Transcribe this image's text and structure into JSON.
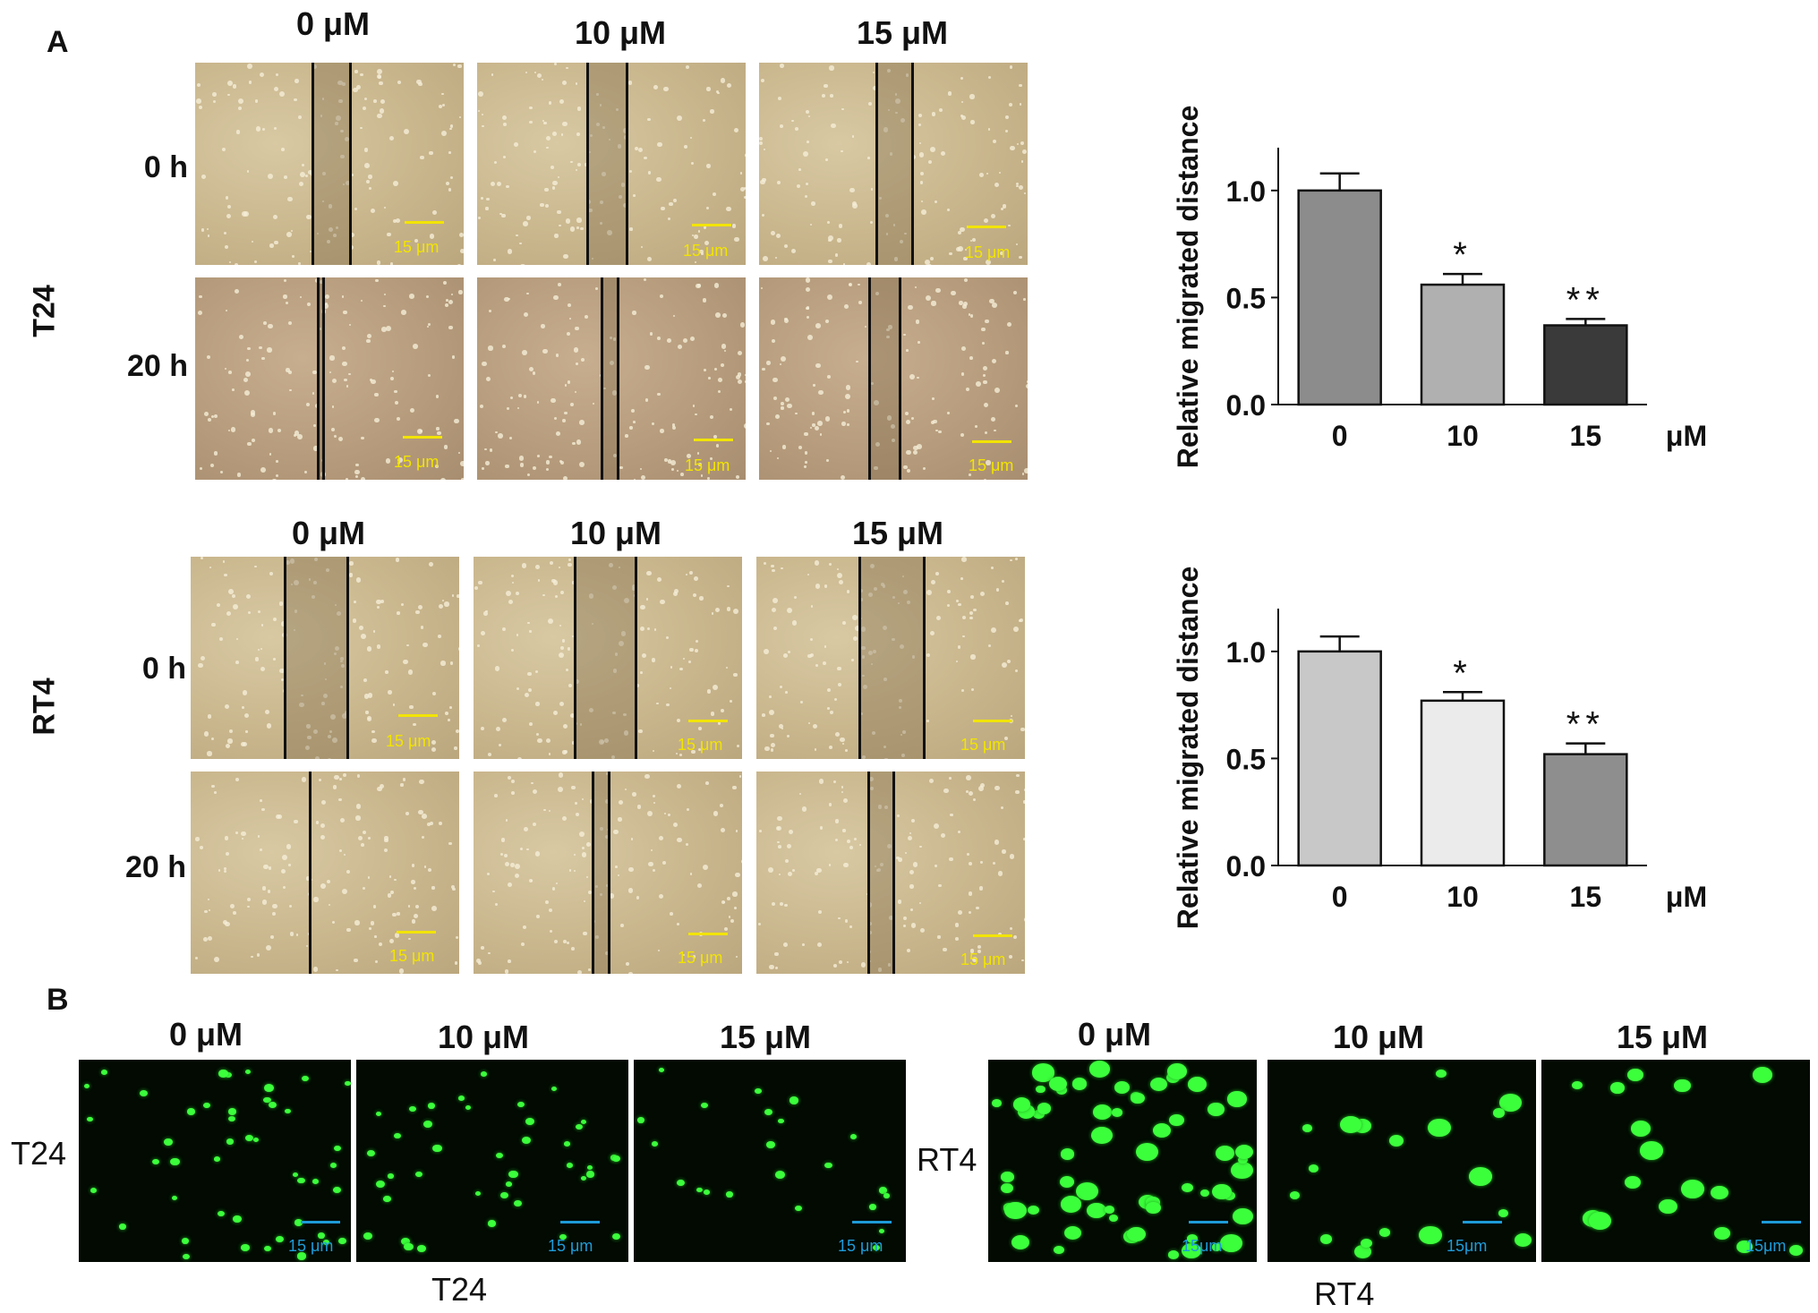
{
  "panel_a": {
    "letter": "A",
    "conc_headers": [
      "0 μM",
      "10 μM",
      "15 μM"
    ],
    "t24": {
      "cell_label": "T24",
      "time_labels": [
        "0 h",
        "20 h"
      ]
    },
    "rt4": {
      "cell_label": "RT4",
      "time_labels": [
        "0 h",
        "20 h"
      ]
    },
    "scale_bar": "15 μm"
  },
  "panel_b": {
    "letter": "B",
    "conc_headers": [
      "0 μM",
      "10 μM",
      "15 μM"
    ],
    "t24_label": "T24",
    "rt4_label": "RT4",
    "t24_bottom": "T24",
    "rt4_bottom": "RT4",
    "scale_bar_t24": "15 μm",
    "scale_bar_rt4": "15μm"
  },
  "colors": {
    "scale_bar_brightfield": "#f2e400",
    "scale_bar_fluorescence": "#1e9bd8",
    "cell_fluorescence": "#3cff3c"
  },
  "chart_data": [
    {
      "type": "bar",
      "categories": [
        "0",
        "10",
        "15"
      ],
      "values": [
        1.0,
        0.56,
        0.37
      ],
      "errors": [
        0.08,
        0.05,
        0.03
      ],
      "significance": [
        "",
        "*",
        "**"
      ],
      "bar_colors": [
        "#8c8c8c",
        "#b0b0b0",
        "#3a3a3a"
      ],
      "ylabel": "Relative migrated distance",
      "xunit": "μM",
      "yticks": [
        "0.0",
        "0.5",
        "1.0"
      ],
      "ylim": [
        0,
        1.2
      ]
    },
    {
      "type": "bar",
      "categories": [
        "0",
        "10",
        "15"
      ],
      "values": [
        1.0,
        0.77,
        0.52
      ],
      "errors": [
        0.07,
        0.04,
        0.05
      ],
      "significance": [
        "",
        "*",
        "**"
      ],
      "bar_colors": [
        "#c8c8c8",
        "#ebebeb",
        "#8e8e8e"
      ],
      "ylabel": "Relative migrated distance",
      "xunit": "μM",
      "yticks": [
        "0.0",
        "0.5",
        "1.0"
      ],
      "ylim": [
        0,
        1.2
      ]
    }
  ]
}
